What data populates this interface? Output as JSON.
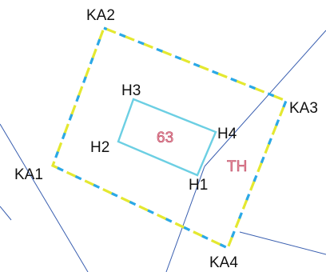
{
  "parcel": {
    "corners": [
      "KA1",
      "KA2",
      "KA3",
      "KA4"
    ],
    "land_use_code": "TH",
    "boundary_colors": {
      "dash_a": "#e4e830",
      "dash_b": "#2aa8e8"
    }
  },
  "house": {
    "corners": [
      "H1",
      "H2",
      "H3",
      "H4"
    ],
    "number": "63",
    "outline_color": "#6ccfe3"
  },
  "background_lines_color": "#3a5fb0"
}
